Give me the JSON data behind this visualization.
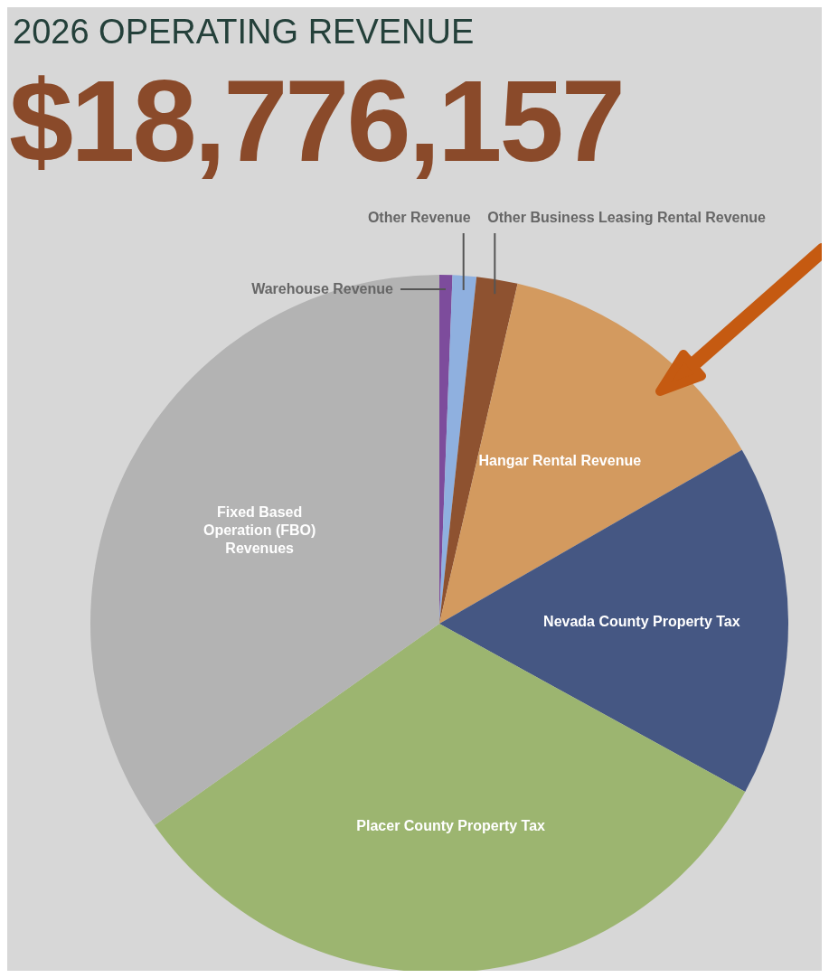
{
  "chart_data": {
    "type": "pie",
    "title": "2026 OPERATING REVENUE",
    "subtitle": "$18,776,157",
    "categories": [
      "Warehouse Revenue",
      "Other Revenue",
      "Other Business Leasing Rental Revenue",
      "Hangar Rental Revenue",
      "Nevada County Property Tax",
      "Placer County Property Tax",
      "Fixed Based Operation (FBO) Revenues"
    ],
    "values": [
      0.6,
      1.1,
      1.9,
      13.1,
      16.3,
      32.2,
      34.8
    ],
    "colors": [
      "#7d4c9c",
      "#8fb0df",
      "#8e5230",
      "#d39a5f",
      "#455783",
      "#9cb570",
      "#b3b3b3"
    ]
  }
}
